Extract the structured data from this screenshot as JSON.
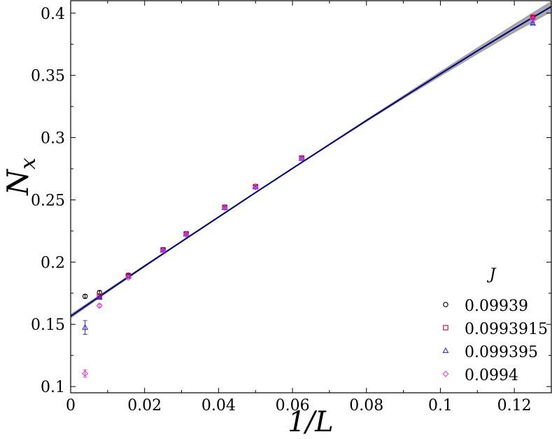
{
  "chart_data": {
    "type": "scatter",
    "xlabel": "1/L",
    "ylabel_main": "N",
    "ylabel_sub": "x",
    "xlim": [
      0,
      0.13
    ],
    "ylim": [
      0.095,
      0.41
    ],
    "x_ticks": [
      {
        "v": 0,
        "label": "0"
      },
      {
        "v": 0.02,
        "label": "0.02"
      },
      {
        "v": 0.04,
        "label": "0.04"
      },
      {
        "v": 0.06,
        "label": "0.06"
      },
      {
        "v": 0.08,
        "label": "0.08"
      },
      {
        "v": 0.1,
        "label": "0.1"
      },
      {
        "v": 0.12,
        "label": "0.12"
      }
    ],
    "y_ticks": [
      {
        "v": 0.1,
        "label": "0.1"
      },
      {
        "v": 0.15,
        "label": "0.15"
      },
      {
        "v": 0.2,
        "label": "0.2"
      },
      {
        "v": 0.25,
        "label": "0.25"
      },
      {
        "v": 0.3,
        "label": "0.3"
      },
      {
        "v": 0.35,
        "label": "0.35"
      },
      {
        "v": 0.4,
        "label": "0.4"
      }
    ],
    "legend_title": "J",
    "legend_position": "bottom-right",
    "fit_curve": {
      "color": "#000080",
      "band_color": "#a8a8a8",
      "points": [
        [
          0,
          0.1565
        ],
        [
          0.01,
          0.1768
        ],
        [
          0.02,
          0.1968
        ],
        [
          0.03,
          0.2165
        ],
        [
          0.04,
          0.2362
        ],
        [
          0.05,
          0.2558
        ],
        [
          0.06,
          0.2753
        ],
        [
          0.07,
          0.2945
        ],
        [
          0.08,
          0.3137
        ],
        [
          0.09,
          0.3325
        ],
        [
          0.1,
          0.3512
        ],
        [
          0.11,
          0.3697
        ],
        [
          0.12,
          0.3878
        ],
        [
          0.13,
          0.4053
        ]
      ],
      "band_halfwidth": [
        0.0015,
        0.001,
        0.0007,
        0.0005,
        0.0004,
        0.0004,
        0.0004,
        0.0005,
        0.0008,
        0.0012,
        0.0018,
        0.0025,
        0.0033,
        0.0042
      ]
    },
    "series": [
      {
        "name": "0.09939",
        "marker": "circle",
        "color": "#000000",
        "points": [
          {
            "x": 0.0039,
            "y": 0.1725,
            "err": 0.0015
          },
          {
            "x": 0.0078,
            "y": 0.1755,
            "err": 0.0015
          },
          {
            "x": 0.0156,
            "y": 0.1895,
            "err": 0.001
          },
          {
            "x": 0.025,
            "y": 0.21,
            "err": 0.0007
          },
          {
            "x": 0.03125,
            "y": 0.2228,
            "err": 0.0006
          },
          {
            "x": 0.04167,
            "y": 0.2442,
            "err": 0.0005
          },
          {
            "x": 0.05,
            "y": 0.2608,
            "err": 0.0005
          },
          {
            "x": 0.0625,
            "y": 0.2838,
            "err": 0.0005
          },
          {
            "x": 0.125,
            "y": 0.3962,
            "err": 0.0008
          }
        ]
      },
      {
        "name": "0.0993915",
        "marker": "square",
        "color": "#e0002a",
        "points": [
          {
            "x": 0.0078,
            "y": 0.1727,
            "err": 0.0012
          },
          {
            "x": 0.0156,
            "y": 0.1892,
            "err": 0.0008
          },
          {
            "x": 0.025,
            "y": 0.2098,
            "err": 0.0006
          },
          {
            "x": 0.03125,
            "y": 0.2227,
            "err": 0.0005
          },
          {
            "x": 0.04167,
            "y": 0.244,
            "err": 0.0004
          },
          {
            "x": 0.05,
            "y": 0.2606,
            "err": 0.0004
          },
          {
            "x": 0.0625,
            "y": 0.2836,
            "err": 0.0004
          },
          {
            "x": 0.125,
            "y": 0.3968,
            "err": 0.0008
          }
        ]
      },
      {
        "name": "0.099395",
        "marker": "triangle",
        "color": "#3030e0",
        "points": [
          {
            "x": 0.0039,
            "y": 0.1475,
            "err": 0.0055
          },
          {
            "x": 0.0078,
            "y": 0.1715,
            "err": 0.0012
          },
          {
            "x": 0.0156,
            "y": 0.1885,
            "err": 0.0008
          },
          {
            "x": 0.025,
            "y": 0.2095,
            "err": 0.0006
          },
          {
            "x": 0.03125,
            "y": 0.2224,
            "err": 0.0005
          },
          {
            "x": 0.04167,
            "y": 0.2438,
            "err": 0.0004
          },
          {
            "x": 0.05,
            "y": 0.2604,
            "err": 0.0004
          },
          {
            "x": 0.0625,
            "y": 0.2832,
            "err": 0.0004
          },
          {
            "x": 0.125,
            "y": 0.3918,
            "err": 0.0008
          }
        ]
      },
      {
        "name": "0.0994",
        "marker": "diamond",
        "color": "#e040e0",
        "points": [
          {
            "x": 0.0039,
            "y": 0.1105,
            "err": 0.003
          },
          {
            "x": 0.0078,
            "y": 0.165,
            "err": 0.0012
          },
          {
            "x": 0.0156,
            "y": 0.1875,
            "err": 0.0008
          },
          {
            "x": 0.025,
            "y": 0.2092,
            "err": 0.0006
          },
          {
            "x": 0.03125,
            "y": 0.2222,
            "err": 0.0005
          },
          {
            "x": 0.04167,
            "y": 0.2436,
            "err": 0.0004
          },
          {
            "x": 0.05,
            "y": 0.2602,
            "err": 0.0004
          },
          {
            "x": 0.0625,
            "y": 0.2834,
            "err": 0.0004
          },
          {
            "x": 0.125,
            "y": 0.3955,
            "err": 0.0008
          }
        ]
      }
    ]
  }
}
